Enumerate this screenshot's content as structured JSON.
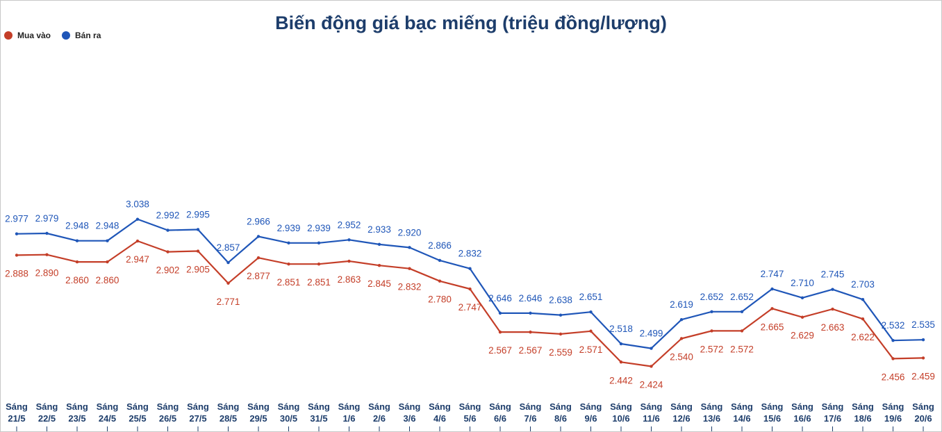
{
  "chart_data": {
    "type": "line",
    "title": "Biến động giá bạc miếng (triệu đồng/lượng)",
    "xlabel": "",
    "ylabel": "",
    "legend_position": "top-left",
    "grid": false,
    "ylim": [
      2.0,
      3.5
    ],
    "categories": [
      [
        "Sáng",
        "21/5"
      ],
      [
        "Sáng",
        "22/5"
      ],
      [
        "Sáng",
        "23/5"
      ],
      [
        "Sáng",
        "24/5"
      ],
      [
        "Sáng",
        "25/5"
      ],
      [
        "Sáng",
        "26/5"
      ],
      [
        "Sáng",
        "27/5"
      ],
      [
        "Sáng",
        "28/5"
      ],
      [
        "Sáng",
        "29/5"
      ],
      [
        "Sáng",
        "30/5"
      ],
      [
        "Sáng",
        "31/5"
      ],
      [
        "Sáng",
        "1/6"
      ],
      [
        "Sáng",
        "2/6"
      ],
      [
        "Sáng",
        "3/6"
      ],
      [
        "Sáng",
        "4/6"
      ],
      [
        "Sáng",
        "5/6"
      ],
      [
        "Sáng",
        "6/6"
      ],
      [
        "Sáng",
        "7/6"
      ],
      [
        "Sáng",
        "8/6"
      ],
      [
        "Sáng",
        "9/6"
      ],
      [
        "Sáng",
        "10/6"
      ],
      [
        "Sáng",
        "11/6"
      ],
      [
        "Sáng",
        "12/6"
      ],
      [
        "Sáng",
        "13/6"
      ],
      [
        "Sáng",
        "14/6"
      ],
      [
        "Sáng",
        "15/6"
      ],
      [
        "Sáng",
        "16/6"
      ],
      [
        "Sáng",
        "17/6"
      ],
      [
        "Sáng",
        "18/6"
      ],
      [
        "Sáng",
        "19/6"
      ],
      [
        "Sáng",
        "20/6"
      ]
    ],
    "series": [
      {
        "name": "Mua vào",
        "color": "#c43e28",
        "values": [
          2.888,
          2.89,
          2.86,
          2.86,
          2.947,
          2.902,
          2.905,
          2.771,
          2.877,
          2.851,
          2.851,
          2.863,
          2.845,
          2.832,
          2.78,
          2.747,
          2.567,
          2.567,
          2.559,
          2.571,
          2.442,
          2.424,
          2.54,
          2.572,
          2.572,
          2.665,
          2.629,
          2.663,
          2.622,
          2.456,
          2.459
        ],
        "labels": [
          "2.888",
          "2.890",
          "2.860",
          "2.860",
          "2.947",
          "2.902",
          "2.905",
          "2.771",
          "2.877",
          "2.851",
          "2.851",
          "2.863",
          "2.845",
          "2.832",
          "2.780",
          "2.747",
          "2.567",
          "2.567",
          "2.559",
          "2.571",
          "2.442",
          "2.424",
          "2.540",
          "2.572",
          "2.572",
          "2.665",
          "2.629",
          "2.663",
          "2.622",
          "2.456",
          "2.459"
        ]
      },
      {
        "name": "Bán ra",
        "color": "#1f56b8",
        "values": [
          2.977,
          2.979,
          2.948,
          2.948,
          3.038,
          2.992,
          2.995,
          2.857,
          2.966,
          2.939,
          2.939,
          2.952,
          2.933,
          2.92,
          2.866,
          2.832,
          2.646,
          2.646,
          2.638,
          2.651,
          2.518,
          2.499,
          2.619,
          2.652,
          2.652,
          2.747,
          2.71,
          2.745,
          2.703,
          2.532,
          2.535
        ],
        "labels": [
          "2.977",
          "2.979",
          "2.948",
          "2.948",
          "3.038",
          "2.992",
          "2.995",
          "2.857",
          "2.966",
          "2.939",
          "2.939",
          "2.952",
          "2.933",
          "2.920",
          "2.866",
          "2.832",
          "2.646",
          "2.646",
          "2.638",
          "2.651",
          "2.518",
          "2.499",
          "2.619",
          "2.652",
          "2.652",
          "2.747",
          "2.710",
          "2.745",
          "2.703",
          "2.532",
          "2.535"
        ]
      }
    ]
  }
}
